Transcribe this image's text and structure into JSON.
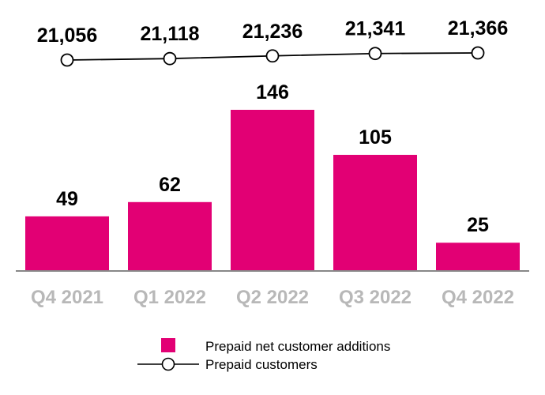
{
  "chart_data": {
    "type": "bar+line",
    "categories": [
      "Q4 2021",
      "Q1 2022",
      "Q2 2022",
      "Q3 2022",
      "Q4 2022"
    ],
    "series": [
      {
        "name": "Prepaid net customer additions",
        "kind": "bar",
        "values": [
          49,
          62,
          146,
          105,
          25
        ],
        "labels": [
          "49",
          "62",
          "146",
          "105",
          "25"
        ],
        "color": "#e20074"
      },
      {
        "name": "Prepaid customers",
        "kind": "line",
        "values": [
          21056,
          21118,
          21236,
          21341,
          21366
        ],
        "labels": [
          "21,056",
          "21,118",
          "21,236",
          "21,341",
          "21,366"
        ],
        "color": "#000000"
      }
    ],
    "bar_ylim": [
      0,
      146
    ],
    "line_ylim": [
      21056,
      21366
    ],
    "legend_position": "bottom",
    "grid": false
  }
}
